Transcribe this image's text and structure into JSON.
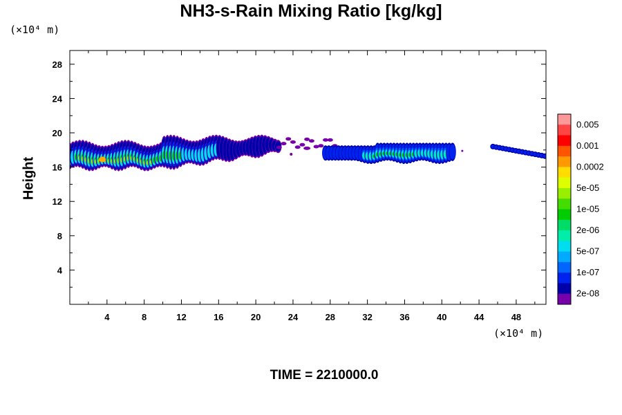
{
  "title": "NH3-s-Rain Mixing Ratio [kg/kg]",
  "y_unit": "(×10⁴ m)",
  "x_unit": "(×10⁴ m)",
  "time_label": "TIME = 2210000.0",
  "chart_data": {
    "type": "heatmap",
    "title": "NH3-s-Rain Mixing Ratio [kg/kg]",
    "xlabel": "",
    "ylabel": "Height",
    "xlim": [
      0,
      51.2
    ],
    "ylim": [
      0,
      29.6
    ],
    "xticks": [
      4,
      8,
      12,
      16,
      20,
      24,
      28,
      32,
      36,
      40,
      44,
      48
    ],
    "yticks": [
      4,
      8,
      12,
      16,
      20,
      24,
      28
    ],
    "colorbar": {
      "labels": [
        "0.005",
        "0.001",
        "0.0002",
        "5e-05",
        "1e-05",
        "2e-06",
        "5e-07",
        "1e-07",
        "2e-08"
      ],
      "colors": [
        "#ff9999",
        "#ff4444",
        "#ff0000",
        "#ff5500",
        "#ff9900",
        "#ffdd00",
        "#ddff00",
        "#99ee00",
        "#44dd00",
        "#00cc00",
        "#00dd66",
        "#00eeaa",
        "#00ddee",
        "#00aaff",
        "#0066ff",
        "#0022ee",
        "#0000aa",
        "#7700aa"
      ]
    },
    "regions": [
      {
        "x": [
          0,
          23
        ],
        "y": [
          15.5,
          19.6
        ],
        "peak": "5e-05"
      },
      {
        "x": [
          22.5,
          29
        ],
        "y": [
          17.8,
          19.7
        ],
        "peak": "2e-08"
      },
      {
        "x": [
          27,
          42
        ],
        "y": [
          16.5,
          18.8
        ],
        "peak": "1e-05"
      },
      {
        "x": [
          45,
          51.2
        ],
        "y": [
          16.5,
          19
        ],
        "peak": "1e-07"
      }
    ]
  }
}
